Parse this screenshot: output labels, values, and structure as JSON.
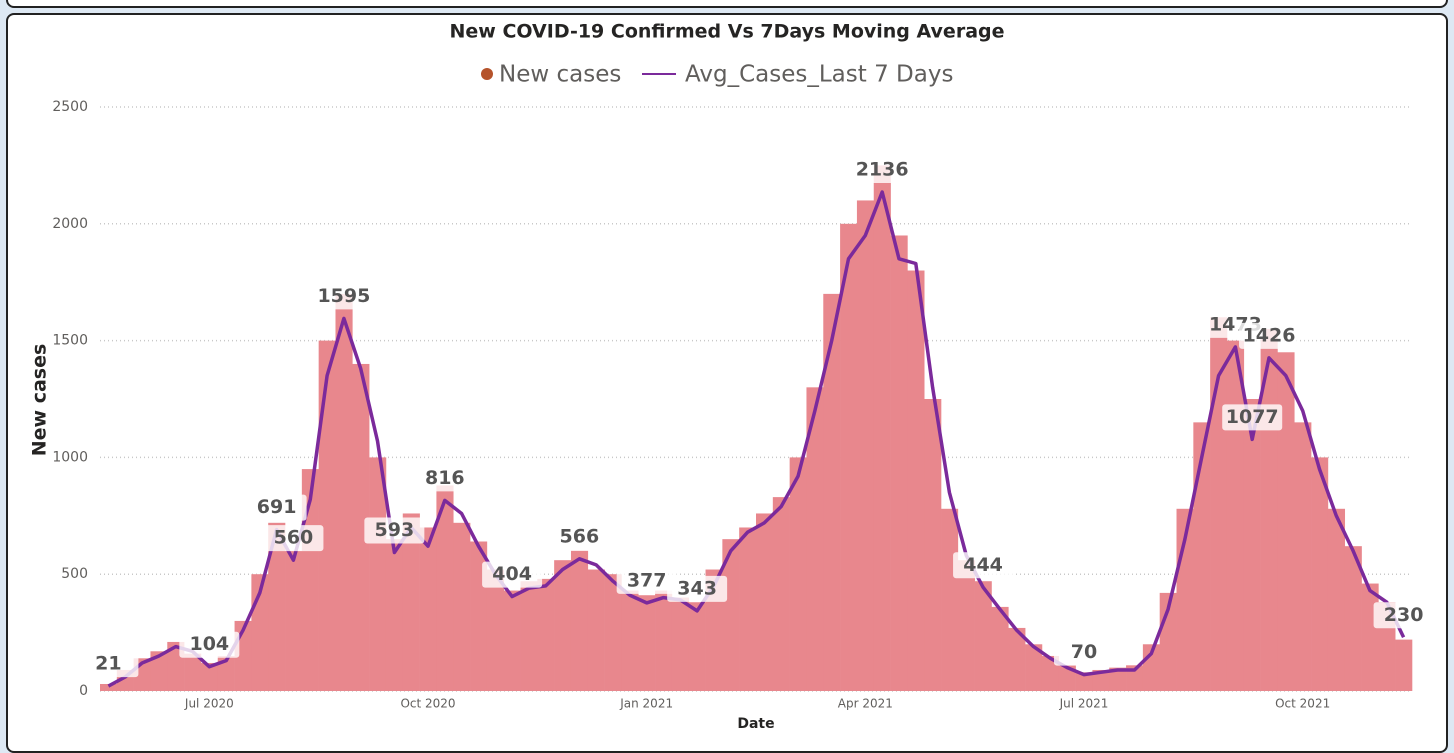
{
  "chart_data": {
    "type": "bar_line",
    "title": "New COVID-19 Confirmed Vs 7Days Moving Average",
    "x_label": "Date",
    "y_label": "New cases",
    "categories": [
      null,
      null,
      null,
      null,
      null,
      null,
      "Jul 2020",
      null,
      null,
      null,
      null,
      null,
      null,
      null,
      null,
      null,
      null,
      null,
      null,
      "Oct 2020",
      null,
      null,
      null,
      null,
      null,
      null,
      null,
      null,
      null,
      null,
      null,
      null,
      "Jan 2021",
      null,
      null,
      null,
      null,
      null,
      null,
      null,
      null,
      null,
      null,
      null,
      null,
      "Apr 2021",
      null,
      null,
      null,
      null,
      null,
      null,
      null,
      null,
      null,
      null,
      null,
      null,
      "Jul 2021",
      null,
      null,
      null,
      null,
      null,
      null,
      null,
      null,
      null,
      null,
      null,
      null,
      "Oct 2021",
      null,
      null,
      null,
      null,
      null,
      null
    ],
    "series": [
      {
        "name": "New cases",
        "color": "#e8878d",
        "legend_color": "#b5532b",
        "values": [
          30,
          90,
          140,
          170,
          210,
          160,
          120,
          150,
          300,
          500,
          720,
          600,
          950,
          1500,
          1700,
          1400,
          1000,
          650,
          760,
          700,
          880,
          720,
          640,
          520,
          430,
          470,
          480,
          560,
          600,
          520,
          500,
          430,
          410,
          430,
          400,
          380,
          520,
          650,
          700,
          760,
          830,
          1000,
          1300,
          1700,
          2000,
          2100,
          2250,
          1950,
          1800,
          1250,
          780,
          560,
          470,
          360,
          270,
          200,
          150,
          110,
          80,
          90,
          100,
          110,
          200,
          420,
          780,
          1150,
          1600,
          1500,
          1250,
          1550,
          1450,
          1150,
          1000,
          780,
          620,
          460,
          380,
          220
        ]
      },
      {
        "name": "Avg_Cases_Last 7 Days",
        "color": "#7b2a9b",
        "values": [
          21,
          60,
          120,
          150,
          190,
          170,
          104,
          130,
          260,
          420,
          691,
          560,
          820,
          1350,
          1595,
          1380,
          1070,
          593,
          700,
          620,
          816,
          760,
          620,
          500,
          404,
          440,
          450,
          520,
          566,
          540,
          470,
          410,
          377,
          400,
          390,
          343,
          450,
          600,
          680,
          720,
          790,
          920,
          1200,
          1500,
          1850,
          1950,
          2136,
          1850,
          1830,
          1300,
          850,
          580,
          444,
          350,
          260,
          190,
          140,
          100,
          70,
          80,
          90,
          90,
          160,
          350,
          650,
          1000,
          1350,
          1473,
          1077,
          1426,
          1350,
          1200,
          950,
          750,
          600,
          430,
          380,
          230
        ],
        "value_labels": [
          "21",
          null,
          null,
          null,
          null,
          null,
          "104",
          null,
          null,
          null,
          "691",
          "560",
          null,
          null,
          "1595",
          null,
          null,
          "593",
          null,
          null,
          "816",
          null,
          null,
          null,
          "404",
          null,
          null,
          null,
          "566",
          null,
          null,
          null,
          "377",
          null,
          null,
          "343",
          null,
          null,
          null,
          null,
          null,
          null,
          null,
          null,
          null,
          null,
          "2136",
          null,
          null,
          null,
          null,
          null,
          "444",
          null,
          null,
          null,
          null,
          null,
          "70",
          null,
          null,
          null,
          null,
          null,
          null,
          null,
          null,
          "1473",
          "1077",
          "1426",
          null,
          null,
          null,
          null,
          null,
          null,
          null,
          "230"
        ]
      }
    ],
    "ylim": [
      0,
      2500
    ],
    "yticks": [
      0,
      500,
      1000,
      1500,
      2000,
      2500
    ],
    "grid": true
  }
}
